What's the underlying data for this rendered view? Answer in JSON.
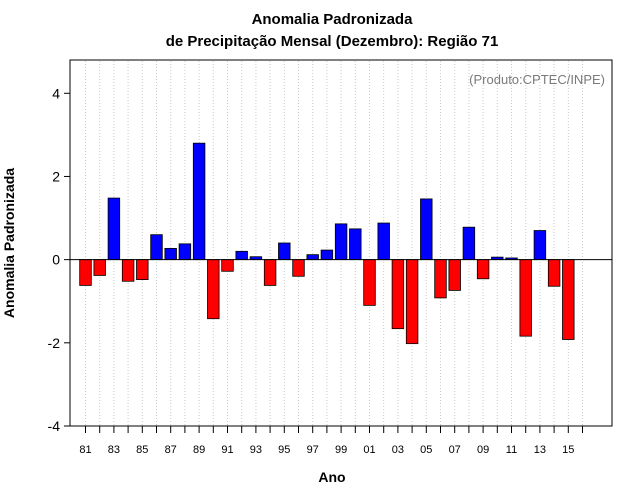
{
  "chart_data": {
    "type": "bar",
    "title": "Anomalia Padronizada",
    "subtitle": "de Precipitação Mensal (Dezembro): Região 71",
    "xlabel": "Ano",
    "ylabel": "Anomalia Padronizada",
    "credit": "(Produto:CPTEC/INPE)",
    "ylim": [
      -4.0,
      4.8
    ],
    "yticks": [
      -4,
      -2,
      0,
      2,
      4
    ],
    "grid": "vertical-dotted",
    "colors": {
      "positive": "#0000ff",
      "negative": "#ff0000",
      "grid": "#c8c8c8"
    },
    "x": [
      1981,
      1982,
      1983,
      1984,
      1985,
      1986,
      1987,
      1988,
      1989,
      1990,
      1991,
      1992,
      1993,
      1994,
      1995,
      1996,
      1997,
      1998,
      1999,
      2000,
      2001,
      2002,
      2003,
      2004,
      2005,
      2006,
      2007,
      2008,
      2009,
      2010,
      2011,
      2012,
      2013,
      2014,
      2015
    ],
    "xtick_labels": [
      "81",
      "83",
      "85",
      "87",
      "89",
      "91",
      "93",
      "95",
      "97",
      "99",
      "01",
      "03",
      "05",
      "07",
      "09",
      "11",
      "13",
      "15"
    ],
    "values": [
      -0.62,
      -0.38,
      1.48,
      -0.52,
      -0.48,
      0.6,
      0.27,
      0.38,
      2.8,
      -1.42,
      -0.28,
      0.2,
      0.07,
      -0.62,
      0.4,
      -0.4,
      0.12,
      0.23,
      0.86,
      0.74,
      -1.1,
      0.88,
      -1.66,
      -2.02,
      1.46,
      -0.92,
      -0.74,
      0.78,
      -0.46,
      0.06,
      0.04,
      -1.84,
      0.7,
      -0.64,
      -1.92
    ]
  }
}
